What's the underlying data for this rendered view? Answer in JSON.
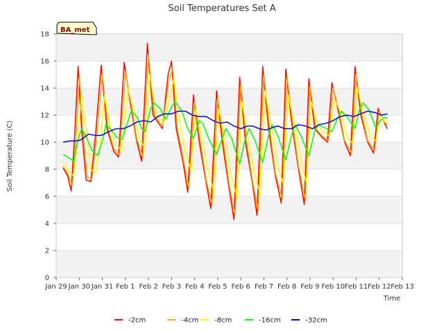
{
  "chart_data": {
    "type": "line",
    "title": "Soil Temperatures Set A",
    "xlabel": "Time",
    "ylabel": "Soil Temperature (C)",
    "badge": "BA_met",
    "xlim": [
      0,
      15
    ],
    "ylim": [
      0,
      18
    ],
    "x_ticks": [
      {
        "v": 0,
        "label": "Jan 29"
      },
      {
        "v": 1,
        "label": "Jan 30"
      },
      {
        "v": 2,
        "label": "Jan 31"
      },
      {
        "v": 3,
        "label": "Feb 1"
      },
      {
        "v": 4,
        "label": "Feb 2"
      },
      {
        "v": 5,
        "label": "Feb 3"
      },
      {
        "v": 6,
        "label": "Feb 4"
      },
      {
        "v": 7,
        "label": "Feb 5"
      },
      {
        "v": 8,
        "label": "Feb 6"
      },
      {
        "v": 9,
        "label": "Feb 7"
      },
      {
        "v": 10,
        "label": "Feb 8"
      },
      {
        "v": 11,
        "label": "Feb 9"
      },
      {
        "v": 12,
        "label": "Feb 10"
      },
      {
        "v": 13,
        "label": "Feb 11"
      },
      {
        "v": 14,
        "label": "Feb 12"
      },
      {
        "v": 15,
        "label": "Feb 13"
      }
    ],
    "y_ticks": [
      0,
      2,
      4,
      6,
      8,
      10,
      12,
      14,
      16,
      18
    ],
    "grid": "horizontal bands",
    "legend_position": "bottom",
    "x_units": "days since Jan 29",
    "series": [
      {
        "name": "-2cm",
        "color": "#ff0000",
        "points": [
          [
            0.3,
            8.1
          ],
          [
            0.5,
            7.5
          ],
          [
            0.65,
            6.4
          ],
          [
            0.8,
            10.5
          ],
          [
            0.95,
            15.6
          ],
          [
            1.1,
            11.0
          ],
          [
            1.3,
            7.2
          ],
          [
            1.5,
            7.1
          ],
          [
            1.7,
            10.5
          ],
          [
            1.95,
            15.7
          ],
          [
            2.2,
            11.0
          ],
          [
            2.5,
            9.3
          ],
          [
            2.7,
            8.9
          ],
          [
            2.95,
            15.9
          ],
          [
            3.2,
            13.0
          ],
          [
            3.5,
            10.0
          ],
          [
            3.7,
            8.6
          ],
          [
            3.95,
            17.3
          ],
          [
            4.2,
            12.0
          ],
          [
            4.6,
            11.0
          ],
          [
            4.85,
            15.0
          ],
          [
            5.0,
            16.0
          ],
          [
            5.2,
            11.0
          ],
          [
            5.5,
            8.5
          ],
          [
            5.7,
            6.3
          ],
          [
            5.95,
            13.5
          ],
          [
            6.2,
            10.0
          ],
          [
            6.5,
            7.0
          ],
          [
            6.7,
            5.1
          ],
          [
            6.95,
            13.8
          ],
          [
            7.2,
            10.0
          ],
          [
            7.5,
            6.5
          ],
          [
            7.7,
            4.3
          ],
          [
            7.95,
            14.8
          ],
          [
            8.2,
            10.0
          ],
          [
            8.5,
            7.0
          ],
          [
            8.7,
            4.6
          ],
          [
            8.95,
            15.6
          ],
          [
            9.2,
            11.0
          ],
          [
            9.5,
            7.5
          ],
          [
            9.75,
            5.5
          ],
          [
            9.95,
            15.4
          ],
          [
            10.2,
            11.5
          ],
          [
            10.5,
            8.0
          ],
          [
            10.75,
            5.4
          ],
          [
            10.95,
            14.7
          ],
          [
            11.2,
            11.0
          ],
          [
            11.5,
            10.4
          ],
          [
            11.75,
            10.0
          ],
          [
            11.95,
            14.4
          ],
          [
            12.2,
            12.5
          ],
          [
            12.5,
            10.0
          ],
          [
            12.75,
            9.0
          ],
          [
            12.95,
            15.6
          ],
          [
            13.2,
            12.0
          ],
          [
            13.5,
            10.0
          ],
          [
            13.75,
            9.2
          ],
          [
            13.95,
            12.5
          ],
          [
            14.2,
            11.5
          ],
          [
            14.35,
            11.0
          ]
        ]
      },
      {
        "name": "-4cm",
        "color": "#ffa500",
        "points": [
          [
            0.3,
            8.2
          ],
          [
            0.5,
            7.7
          ],
          [
            0.7,
            6.8
          ],
          [
            0.85,
            10.0
          ],
          [
            1.0,
            15.0
          ],
          [
            1.15,
            11.0
          ],
          [
            1.35,
            7.4
          ],
          [
            1.55,
            7.3
          ],
          [
            1.75,
            10.2
          ],
          [
            2.0,
            15.0
          ],
          [
            2.25,
            11.0
          ],
          [
            2.5,
            9.5
          ],
          [
            2.75,
            9.1
          ],
          [
            3.0,
            15.2
          ],
          [
            3.25,
            12.8
          ],
          [
            3.5,
            10.2
          ],
          [
            3.75,
            8.9
          ],
          [
            4.0,
            16.5
          ],
          [
            4.25,
            12.0
          ],
          [
            4.6,
            11.2
          ],
          [
            4.9,
            14.6
          ],
          [
            5.05,
            15.5
          ],
          [
            5.25,
            11.0
          ],
          [
            5.5,
            8.8
          ],
          [
            5.75,
            6.6
          ],
          [
            6.0,
            13.0
          ],
          [
            6.25,
            10.0
          ],
          [
            6.5,
            7.2
          ],
          [
            6.75,
            5.4
          ],
          [
            7.0,
            13.3
          ],
          [
            7.25,
            10.0
          ],
          [
            7.5,
            6.8
          ],
          [
            7.75,
            4.6
          ],
          [
            8.0,
            14.3
          ],
          [
            8.25,
            10.0
          ],
          [
            8.5,
            7.2
          ],
          [
            8.75,
            4.9
          ],
          [
            9.0,
            15.0
          ],
          [
            9.25,
            11.0
          ],
          [
            9.5,
            7.7
          ],
          [
            9.8,
            5.8
          ],
          [
            10.0,
            14.9
          ],
          [
            10.25,
            11.4
          ],
          [
            10.5,
            8.2
          ],
          [
            10.8,
            5.7
          ],
          [
            11.0,
            14.2
          ],
          [
            11.25,
            11.0
          ],
          [
            11.5,
            10.5
          ],
          [
            11.8,
            10.1
          ],
          [
            12.0,
            14.0
          ],
          [
            12.25,
            12.4
          ],
          [
            12.5,
            10.1
          ],
          [
            12.8,
            9.2
          ],
          [
            13.0,
            15.0
          ],
          [
            13.25,
            12.0
          ],
          [
            13.5,
            10.1
          ],
          [
            13.8,
            9.4
          ],
          [
            14.0,
            12.3
          ],
          [
            14.2,
            11.5
          ],
          [
            14.35,
            11.3
          ]
        ]
      },
      {
        "name": "-8cm",
        "color": "#ffff00",
        "points": [
          [
            0.3,
            8.5
          ],
          [
            0.5,
            8.0
          ],
          [
            0.75,
            7.5
          ],
          [
            0.9,
            9.5
          ],
          [
            1.1,
            13.5
          ],
          [
            1.3,
            11.0
          ],
          [
            1.5,
            8.0
          ],
          [
            1.7,
            7.7
          ],
          [
            1.9,
            9.8
          ],
          [
            2.1,
            13.5
          ],
          [
            2.35,
            11.0
          ],
          [
            2.6,
            9.8
          ],
          [
            2.85,
            9.4
          ],
          [
            3.1,
            14.0
          ],
          [
            3.35,
            12.5
          ],
          [
            3.6,
            10.3
          ],
          [
            3.85,
            9.5
          ],
          [
            4.05,
            15.0
          ],
          [
            4.35,
            12.0
          ],
          [
            4.65,
            11.4
          ],
          [
            4.95,
            13.5
          ],
          [
            5.1,
            14.8
          ],
          [
            5.35,
            11.5
          ],
          [
            5.6,
            9.3
          ],
          [
            5.85,
            7.8
          ],
          [
            6.05,
            12.5
          ],
          [
            6.35,
            10.0
          ],
          [
            6.6,
            7.8
          ],
          [
            6.85,
            6.2
          ],
          [
            7.05,
            12.5
          ],
          [
            7.35,
            10.0
          ],
          [
            7.6,
            7.4
          ],
          [
            7.85,
            5.8
          ],
          [
            8.05,
            13.0
          ],
          [
            8.35,
            10.0
          ],
          [
            8.6,
            7.7
          ],
          [
            8.85,
            6.0
          ],
          [
            9.05,
            13.8
          ],
          [
            9.35,
            11.0
          ],
          [
            9.6,
            8.3
          ],
          [
            9.85,
            6.8
          ],
          [
            10.05,
            13.5
          ],
          [
            10.35,
            11.2
          ],
          [
            10.6,
            8.7
          ],
          [
            10.85,
            6.9
          ],
          [
            11.05,
            13.0
          ],
          [
            11.35,
            11.2
          ],
          [
            11.6,
            10.7
          ],
          [
            11.85,
            10.5
          ],
          [
            12.05,
            13.2
          ],
          [
            12.35,
            12.2
          ],
          [
            12.6,
            10.4
          ],
          [
            12.85,
            9.9
          ],
          [
            13.05,
            14.0
          ],
          [
            13.35,
            12.0
          ],
          [
            13.6,
            10.4
          ],
          [
            13.85,
            10.1
          ],
          [
            14.05,
            12.0
          ],
          [
            14.2,
            11.6
          ],
          [
            14.35,
            11.5
          ]
        ]
      },
      {
        "name": "-16cm",
        "color": "#00ff00",
        "points": [
          [
            0.3,
            9.1
          ],
          [
            0.5,
            8.9
          ],
          [
            0.75,
            8.6
          ],
          [
            0.95,
            10.2
          ],
          [
            1.1,
            11.0
          ],
          [
            1.3,
            10.4
          ],
          [
            1.55,
            9.4
          ],
          [
            1.8,
            9.0
          ],
          [
            2.05,
            10.4
          ],
          [
            2.15,
            11.3
          ],
          [
            2.35,
            11.0
          ],
          [
            2.6,
            10.4
          ],
          [
            2.85,
            10.2
          ],
          [
            3.1,
            11.5
          ],
          [
            3.25,
            12.3
          ],
          [
            3.5,
            11.9
          ],
          [
            3.7,
            11.0
          ],
          [
            3.85,
            10.8
          ],
          [
            4.1,
            12.5
          ],
          [
            4.25,
            12.9
          ],
          [
            4.5,
            12.5
          ],
          [
            4.75,
            11.7
          ],
          [
            5.0,
            12.6
          ],
          [
            5.15,
            13.0
          ],
          [
            5.45,
            12.3
          ],
          [
            5.7,
            11.0
          ],
          [
            5.95,
            10.3
          ],
          [
            6.2,
            11.6
          ],
          [
            6.35,
            11.4
          ],
          [
            6.6,
            10.3
          ],
          [
            6.95,
            9.1
          ],
          [
            7.2,
            10.3
          ],
          [
            7.35,
            11.0
          ],
          [
            7.6,
            10.3
          ],
          [
            7.95,
            8.4
          ],
          [
            8.2,
            10.3
          ],
          [
            8.35,
            11.0
          ],
          [
            8.6,
            10.2
          ],
          [
            8.95,
            8.5
          ],
          [
            9.2,
            10.5
          ],
          [
            9.35,
            11.3
          ],
          [
            9.6,
            10.5
          ],
          [
            9.95,
            8.7
          ],
          [
            10.2,
            10.5
          ],
          [
            10.35,
            11.3
          ],
          [
            10.6,
            10.5
          ],
          [
            10.95,
            9.0
          ],
          [
            11.2,
            10.8
          ],
          [
            11.35,
            11.3
          ],
          [
            11.6,
            11.1
          ],
          [
            11.95,
            10.8
          ],
          [
            12.2,
            11.8
          ],
          [
            12.35,
            12.3
          ],
          [
            12.6,
            11.9
          ],
          [
            12.95,
            11.0
          ],
          [
            13.15,
            12.5
          ],
          [
            13.3,
            12.9
          ],
          [
            13.55,
            12.4
          ],
          [
            13.85,
            11.1
          ],
          [
            14.05,
            11.6
          ],
          [
            14.2,
            11.8
          ],
          [
            14.35,
            11.8
          ]
        ]
      },
      {
        "name": "-32cm",
        "color": "#0000cd",
        "points": [
          [
            0.3,
            10.0
          ],
          [
            0.6,
            10.1
          ],
          [
            0.9,
            10.1
          ],
          [
            1.1,
            10.2
          ],
          [
            1.4,
            10.6
          ],
          [
            1.7,
            10.5
          ],
          [
            1.95,
            10.5
          ],
          [
            2.3,
            10.8
          ],
          [
            2.6,
            11.0
          ],
          [
            2.9,
            11.0
          ],
          [
            3.2,
            11.2
          ],
          [
            3.5,
            11.5
          ],
          [
            3.8,
            11.6
          ],
          [
            4.1,
            11.5
          ],
          [
            4.4,
            11.9
          ],
          [
            4.7,
            12.1
          ],
          [
            5.0,
            12.1
          ],
          [
            5.3,
            12.3
          ],
          [
            5.6,
            12.3
          ],
          [
            5.9,
            12.0
          ],
          [
            6.2,
            11.9
          ],
          [
            6.5,
            11.9
          ],
          [
            6.8,
            11.6
          ],
          [
            7.1,
            11.4
          ],
          [
            7.4,
            11.5
          ],
          [
            7.7,
            11.2
          ],
          [
            8.0,
            11.0
          ],
          [
            8.3,
            11.2
          ],
          [
            8.5,
            11.2
          ],
          [
            8.8,
            11.0
          ],
          [
            9.1,
            10.9
          ],
          [
            9.4,
            11.1
          ],
          [
            9.6,
            11.2
          ],
          [
            9.9,
            11.0
          ],
          [
            10.2,
            11.0
          ],
          [
            10.5,
            11.3
          ],
          [
            10.8,
            11.2
          ],
          [
            11.1,
            11.0
          ],
          [
            11.4,
            11.3
          ],
          [
            11.7,
            11.4
          ],
          [
            12.0,
            11.6
          ],
          [
            12.3,
            11.9
          ],
          [
            12.6,
            12.0
          ],
          [
            12.9,
            11.9
          ],
          [
            13.2,
            12.1
          ],
          [
            13.5,
            12.3
          ],
          [
            13.8,
            12.2
          ],
          [
            14.1,
            12.0
          ],
          [
            14.35,
            12.1
          ]
        ]
      }
    ]
  }
}
